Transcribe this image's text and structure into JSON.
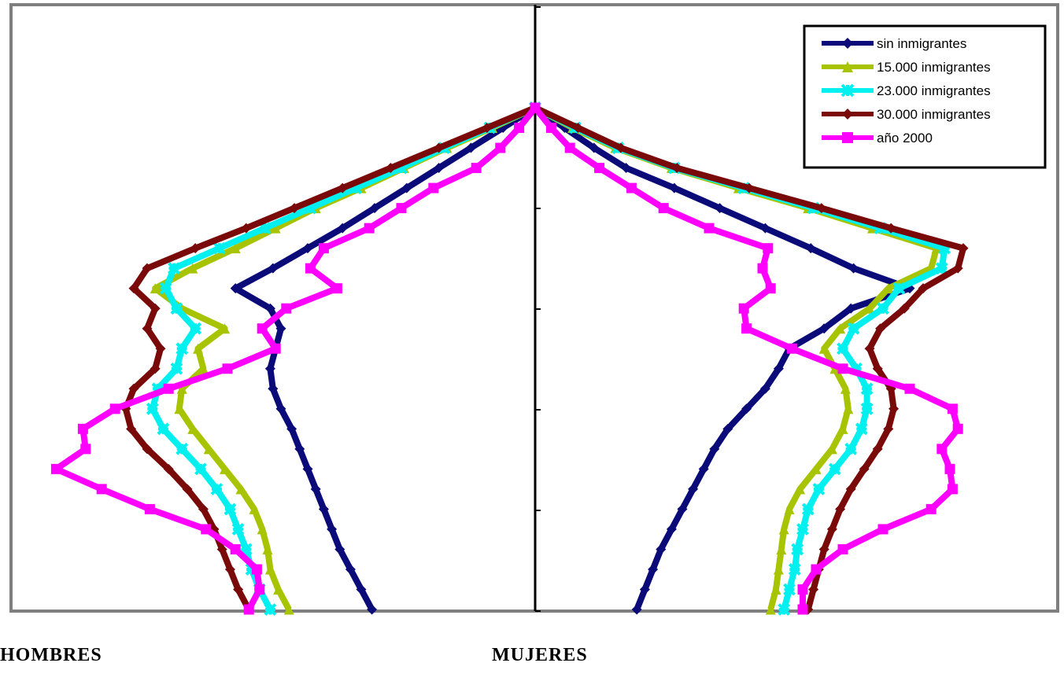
{
  "chart_data": {
    "type": "line",
    "title": "",
    "xlabel": "",
    "ylabel": "",
    "side_labels": {
      "left": "HOMBRES",
      "right": "MUJERES"
    },
    "legend_position": "top-right",
    "x_axis": "population share, males negative / females positive (axis unlabeled)",
    "xlim": [
      -1,
      1
    ],
    "y_axis": "age (axis unlabeled; 6 tick intervals, 0 at bottom)",
    "ylim": [
      0,
      1
    ],
    "grid": false,
    "series": [
      {
        "name": "sin inmigrantes",
        "color": "#0a0a78",
        "marker": "diamond",
        "male": [
          [
            -0.61,
            0
          ],
          [
            -0.65,
            0.04
          ],
          [
            -0.69,
            0.08
          ],
          [
            -0.73,
            0.12
          ],
          [
            -0.76,
            0.16
          ],
          [
            -0.79,
            0.2
          ],
          [
            -0.82,
            0.24
          ],
          [
            -0.85,
            0.28
          ],
          [
            -0.88,
            0.32
          ],
          [
            -0.91,
            0.36
          ],
          [
            -0.95,
            0.4
          ],
          [
            -0.98,
            0.44
          ],
          [
            -0.99,
            0.48
          ],
          [
            -0.97,
            0.52
          ],
          [
            -0.95,
            0.56
          ],
          [
            -0.99,
            0.6
          ],
          [
            -1.12,
            0.64
          ],
          [
            -0.98,
            0.68
          ],
          [
            -0.85,
            0.72
          ],
          [
            -0.72,
            0.76
          ],
          [
            -0.6,
            0.8
          ],
          [
            -0.48,
            0.84
          ],
          [
            -0.36,
            0.88
          ],
          [
            -0.24,
            0.92
          ],
          [
            -0.12,
            0.96
          ],
          [
            0,
            1
          ]
        ],
        "female": [
          [
            0.38,
            0
          ],
          [
            0.41,
            0.04
          ],
          [
            0.44,
            0.08
          ],
          [
            0.47,
            0.12
          ],
          [
            0.51,
            0.16
          ],
          [
            0.55,
            0.2
          ],
          [
            0.59,
            0.24
          ],
          [
            0.63,
            0.28
          ],
          [
            0.67,
            0.32
          ],
          [
            0.72,
            0.36
          ],
          [
            0.79,
            0.4
          ],
          [
            0.86,
            0.44
          ],
          [
            0.91,
            0.48
          ],
          [
            0.95,
            0.52
          ],
          [
            1.08,
            0.56
          ],
          [
            1.18,
            0.6
          ],
          [
            1.4,
            0.64
          ],
          [
            1.19,
            0.68
          ],
          [
            1.03,
            0.72
          ],
          [
            0.86,
            0.76
          ],
          [
            0.69,
            0.8
          ],
          [
            0.52,
            0.84
          ],
          [
            0.34,
            0.88
          ],
          [
            0.22,
            0.92
          ],
          [
            0.11,
            0.96
          ],
          [
            0,
            1
          ]
        ]
      },
      {
        "name": "15.000 inmigrantes",
        "color": "#a8c400",
        "marker": "triangle",
        "male": [
          [
            -0.92,
            0
          ],
          [
            -0.96,
            0.04
          ],
          [
            -0.99,
            0.08
          ],
          [
            -1.0,
            0.12
          ],
          [
            -1.02,
            0.16
          ],
          [
            -1.05,
            0.2
          ],
          [
            -1.1,
            0.24
          ],
          [
            -1.16,
            0.28
          ],
          [
            -1.22,
            0.32
          ],
          [
            -1.28,
            0.36
          ],
          [
            -1.33,
            0.4
          ],
          [
            -1.32,
            0.44
          ],
          [
            -1.24,
            0.48
          ],
          [
            -1.26,
            0.52
          ],
          [
            -1.16,
            0.56
          ],
          [
            -1.32,
            0.6
          ],
          [
            -1.42,
            0.64
          ],
          [
            -1.28,
            0.68
          ],
          [
            -1.12,
            0.72
          ],
          [
            -0.97,
            0.76
          ],
          [
            -0.82,
            0.8
          ],
          [
            -0.65,
            0.84
          ],
          [
            -0.49,
            0.88
          ],
          [
            -0.33,
            0.92
          ],
          [
            -0.16,
            0.96
          ],
          [
            0,
            1
          ]
        ],
        "female": [
          [
            0.88,
            0
          ],
          [
            0.9,
            0.04
          ],
          [
            0.91,
            0.08
          ],
          [
            0.92,
            0.12
          ],
          [
            0.93,
            0.16
          ],
          [
            0.95,
            0.2
          ],
          [
            0.99,
            0.24
          ],
          [
            1.05,
            0.28
          ],
          [
            1.11,
            0.32
          ],
          [
            1.15,
            0.36
          ],
          [
            1.17,
            0.4
          ],
          [
            1.16,
            0.44
          ],
          [
            1.12,
            0.48
          ],
          [
            1.08,
            0.52
          ],
          [
            1.14,
            0.56
          ],
          [
            1.25,
            0.6
          ],
          [
            1.32,
            0.64
          ],
          [
            1.48,
            0.68
          ],
          [
            1.5,
            0.72
          ],
          [
            1.26,
            0.76
          ],
          [
            1.02,
            0.8
          ],
          [
            0.76,
            0.84
          ],
          [
            0.51,
            0.88
          ],
          [
            0.3,
            0.92
          ],
          [
            0.14,
            0.96
          ],
          [
            0,
            1
          ]
        ]
      },
      {
        "name": "23.000 inmigrantes",
        "color": "#00f0f0",
        "marker": "asterisk",
        "male": [
          [
            -0.99,
            0
          ],
          [
            -1.03,
            0.04
          ],
          [
            -1.06,
            0.08
          ],
          [
            -1.08,
            0.12
          ],
          [
            -1.11,
            0.16
          ],
          [
            -1.14,
            0.2
          ],
          [
            -1.19,
            0.24
          ],
          [
            -1.25,
            0.28
          ],
          [
            -1.32,
            0.32
          ],
          [
            -1.39,
            0.36
          ],
          [
            -1.43,
            0.4
          ],
          [
            -1.41,
            0.44
          ],
          [
            -1.34,
            0.48
          ],
          [
            -1.32,
            0.52
          ],
          [
            -1.27,
            0.56
          ],
          [
            -1.34,
            0.6
          ],
          [
            -1.38,
            0.64
          ],
          [
            -1.35,
            0.68
          ],
          [
            -1.18,
            0.72
          ],
          [
            -1.01,
            0.76
          ],
          [
            -0.84,
            0.8
          ],
          [
            -0.67,
            0.84
          ],
          [
            -0.5,
            0.88
          ],
          [
            -0.34,
            0.92
          ],
          [
            -0.17,
            0.96
          ],
          [
            0,
            1
          ]
        ],
        "female": [
          [
            0.93,
            0
          ],
          [
            0.95,
            0.04
          ],
          [
            0.97,
            0.08
          ],
          [
            0.98,
            0.12
          ],
          [
            1.0,
            0.16
          ],
          [
            1.02,
            0.2
          ],
          [
            1.06,
            0.24
          ],
          [
            1.12,
            0.28
          ],
          [
            1.18,
            0.32
          ],
          [
            1.22,
            0.36
          ],
          [
            1.24,
            0.4
          ],
          [
            1.24,
            0.44
          ],
          [
            1.2,
            0.48
          ],
          [
            1.15,
            0.52
          ],
          [
            1.19,
            0.56
          ],
          [
            1.3,
            0.6
          ],
          [
            1.36,
            0.64
          ],
          [
            1.52,
            0.68
          ],
          [
            1.53,
            0.72
          ],
          [
            1.29,
            0.76
          ],
          [
            1.04,
            0.8
          ],
          [
            0.78,
            0.84
          ],
          [
            0.52,
            0.88
          ],
          [
            0.31,
            0.92
          ],
          [
            0.15,
            0.96
          ],
          [
            0,
            1
          ]
        ]
      },
      {
        "name": "30.000 inmigrantes",
        "color": "#7a0a0a",
        "marker": "diamond",
        "male": [
          [
            -1.07,
            0
          ],
          [
            -1.11,
            0.04
          ],
          [
            -1.14,
            0.08
          ],
          [
            -1.17,
            0.12
          ],
          [
            -1.2,
            0.16
          ],
          [
            -1.24,
            0.2
          ],
          [
            -1.3,
            0.24
          ],
          [
            -1.37,
            0.28
          ],
          [
            -1.45,
            0.32
          ],
          [
            -1.51,
            0.36
          ],
          [
            -1.53,
            0.4
          ],
          [
            -1.5,
            0.44
          ],
          [
            -1.42,
            0.48
          ],
          [
            -1.4,
            0.52
          ],
          [
            -1.45,
            0.56
          ],
          [
            -1.42,
            0.6
          ],
          [
            -1.5,
            0.64
          ],
          [
            -1.45,
            0.68
          ],
          [
            -1.27,
            0.72
          ],
          [
            -1.08,
            0.76
          ],
          [
            -0.9,
            0.8
          ],
          [
            -0.72,
            0.84
          ],
          [
            -0.54,
            0.88
          ],
          [
            -0.36,
            0.92
          ],
          [
            -0.18,
            0.96
          ],
          [
            0,
            1
          ]
        ],
        "female": [
          [
            1.02,
            0
          ],
          [
            1.04,
            0.04
          ],
          [
            1.06,
            0.08
          ],
          [
            1.08,
            0.12
          ],
          [
            1.11,
            0.16
          ],
          [
            1.14,
            0.2
          ],
          [
            1.18,
            0.24
          ],
          [
            1.23,
            0.28
          ],
          [
            1.28,
            0.32
          ],
          [
            1.32,
            0.36
          ],
          [
            1.34,
            0.4
          ],
          [
            1.33,
            0.44
          ],
          [
            1.28,
            0.48
          ],
          [
            1.25,
            0.52
          ],
          [
            1.29,
            0.56
          ],
          [
            1.38,
            0.6
          ],
          [
            1.45,
            0.64
          ],
          [
            1.58,
            0.68
          ],
          [
            1.6,
            0.72
          ],
          [
            1.33,
            0.76
          ],
          [
            1.07,
            0.8
          ],
          [
            0.8,
            0.84
          ],
          [
            0.53,
            0.88
          ],
          [
            0.32,
            0.92
          ],
          [
            0.16,
            0.96
          ],
          [
            0,
            1
          ]
        ]
      },
      {
        "name": "año 2000",
        "color": "#ff00ff",
        "marker": "square",
        "male": [
          [
            -1.07,
            0
          ],
          [
            -1.03,
            0.04
          ],
          [
            -1.04,
            0.08
          ],
          [
            -1.12,
            0.12
          ],
          [
            -1.23,
            0.16
          ],
          [
            -1.44,
            0.2
          ],
          [
            -1.62,
            0.24
          ],
          [
            -1.79,
            0.28
          ],
          [
            -1.68,
            0.32
          ],
          [
            -1.69,
            0.36
          ],
          [
            -1.57,
            0.4
          ],
          [
            -1.37,
            0.44
          ],
          [
            -1.15,
            0.48
          ],
          [
            -0.97,
            0.52
          ],
          [
            -1.02,
            0.56
          ],
          [
            -0.93,
            0.6
          ],
          [
            -0.74,
            0.64
          ],
          [
            -0.84,
            0.68
          ],
          [
            -0.79,
            0.72
          ],
          [
            -0.62,
            0.76
          ],
          [
            -0.5,
            0.8
          ],
          [
            -0.38,
            0.84
          ],
          [
            -0.22,
            0.88
          ],
          [
            -0.13,
            0.92
          ],
          [
            -0.06,
            0.96
          ],
          [
            0,
            1
          ]
        ],
        "female": [
          [
            1.0,
            0
          ],
          [
            1.0,
            0.04
          ],
          [
            1.05,
            0.08
          ],
          [
            1.15,
            0.12
          ],
          [
            1.3,
            0.16
          ],
          [
            1.48,
            0.2
          ],
          [
            1.56,
            0.24
          ],
          [
            1.55,
            0.28
          ],
          [
            1.52,
            0.32
          ],
          [
            1.58,
            0.36
          ],
          [
            1.56,
            0.4
          ],
          [
            1.4,
            0.44
          ],
          [
            1.15,
            0.48
          ],
          [
            0.96,
            0.52
          ],
          [
            0.79,
            0.56
          ],
          [
            0.78,
            0.6
          ],
          [
            0.88,
            0.64
          ],
          [
            0.85,
            0.68
          ],
          [
            0.87,
            0.72
          ],
          [
            0.65,
            0.76
          ],
          [
            0.48,
            0.8
          ],
          [
            0.36,
            0.84
          ],
          [
            0.24,
            0.88
          ],
          [
            0.13,
            0.92
          ],
          [
            0.06,
            0.96
          ],
          [
            0,
            1
          ]
        ]
      }
    ]
  }
}
